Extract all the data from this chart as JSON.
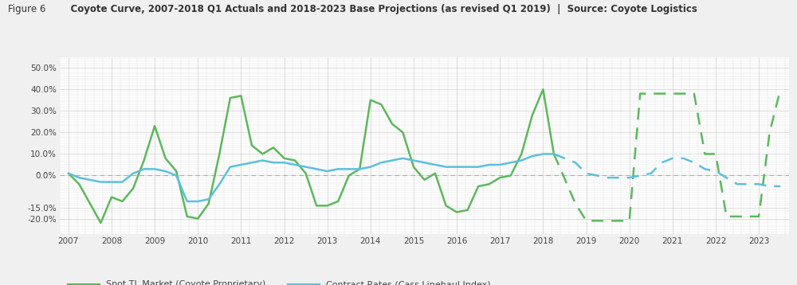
{
  "title_prefix": "Figure 6",
  "title_main": "    Coyote Curve, 2007-2018 Q1 Actuals and 2018-2023 Base Projections (as revised Q1 2019)  |  Source: Coyote Logistics",
  "background_color": "#f0f0f0",
  "plot_background": "#ffffff",
  "green_color": "#5cb85c",
  "cyan_color": "#5bc0de",
  "spot_solid_x": [
    2007.0,
    2007.25,
    2007.5,
    2007.75,
    2008.0,
    2008.25,
    2008.5,
    2008.75,
    2009.0,
    2009.25,
    2009.5,
    2009.75,
    2010.0,
    2010.25,
    2010.5,
    2010.75,
    2011.0,
    2011.25,
    2011.5,
    2011.75,
    2012.0,
    2012.25,
    2012.5,
    2012.75,
    2013.0,
    2013.25,
    2013.5,
    2013.75,
    2014.0,
    2014.25,
    2014.5,
    2014.75,
    2015.0,
    2015.25,
    2015.5,
    2015.75,
    2016.0,
    2016.25,
    2016.5,
    2016.75,
    2017.0,
    2017.25,
    2017.5,
    2017.75,
    2018.0,
    2018.25
  ],
  "spot_solid_y": [
    0.01,
    -0.04,
    -0.13,
    -0.22,
    -0.1,
    -0.12,
    -0.06,
    0.07,
    0.23,
    0.08,
    0.02,
    -0.19,
    -0.2,
    -0.13,
    0.1,
    0.36,
    0.37,
    0.14,
    0.1,
    0.13,
    0.08,
    0.07,
    0.01,
    -0.14,
    -0.14,
    -0.12,
    0.0,
    0.03,
    0.35,
    0.33,
    0.24,
    0.2,
    0.04,
    -0.02,
    0.01,
    -0.14,
    -0.17,
    -0.16,
    -0.05,
    -0.04,
    -0.01,
    0.0,
    0.1,
    0.28,
    0.4,
    0.1
  ],
  "spot_dashed_x": [
    2018.25,
    2018.75,
    2019.0,
    2019.5,
    2019.75,
    2020.0,
    2020.25,
    2021.25,
    2021.5,
    2021.75,
    2022.0,
    2022.25,
    2022.75,
    2023.0,
    2023.25,
    2023.5
  ],
  "spot_dashed_y": [
    0.1,
    -0.13,
    -0.21,
    -0.21,
    -0.21,
    -0.21,
    0.38,
    0.38,
    0.38,
    0.1,
    0.1,
    -0.19,
    -0.19,
    -0.19,
    0.2,
    0.4
  ],
  "contract_solid_x": [
    2007.0,
    2007.25,
    2007.5,
    2007.75,
    2008.0,
    2008.25,
    2008.5,
    2008.75,
    2009.0,
    2009.25,
    2009.5,
    2009.75,
    2010.0,
    2010.25,
    2010.5,
    2010.75,
    2011.0,
    2011.25,
    2011.5,
    2011.75,
    2012.0,
    2012.25,
    2012.5,
    2012.75,
    2013.0,
    2013.25,
    2013.5,
    2013.75,
    2014.0,
    2014.25,
    2014.5,
    2014.75,
    2015.0,
    2015.25,
    2015.5,
    2015.75,
    2016.0,
    2016.25,
    2016.5,
    2016.75,
    2017.0,
    2017.25,
    2017.5,
    2017.75,
    2018.0,
    2018.25
  ],
  "contract_solid_y": [
    0.01,
    -0.01,
    -0.02,
    -0.03,
    -0.03,
    -0.03,
    0.01,
    0.03,
    0.03,
    0.02,
    0.0,
    -0.12,
    -0.12,
    -0.11,
    -0.04,
    0.04,
    0.05,
    0.06,
    0.07,
    0.06,
    0.06,
    0.05,
    0.04,
    0.03,
    0.02,
    0.03,
    0.03,
    0.03,
    0.04,
    0.06,
    0.07,
    0.08,
    0.07,
    0.06,
    0.05,
    0.04,
    0.04,
    0.04,
    0.04,
    0.05,
    0.05,
    0.06,
    0.07,
    0.09,
    0.1,
    0.1
  ],
  "contract_dashed_x": [
    2018.25,
    2018.75,
    2019.0,
    2019.5,
    2019.75,
    2020.0,
    2020.5,
    2020.75,
    2021.0,
    2021.25,
    2021.5,
    2021.75,
    2022.0,
    2022.5,
    2022.75,
    2023.0,
    2023.25,
    2023.5
  ],
  "contract_dashed_y": [
    0.1,
    0.06,
    0.01,
    -0.01,
    -0.01,
    -0.01,
    0.01,
    0.06,
    0.08,
    0.08,
    0.06,
    0.03,
    0.02,
    -0.04,
    -0.04,
    -0.04,
    -0.05,
    -0.05
  ],
  "xtick_labels": [
    "2007",
    "2008",
    "2009",
    "2010",
    "2011",
    "2012",
    "2013",
    "2014",
    "2015",
    "2016",
    "2017",
    "2018",
    "2019",
    "2020",
    "2021",
    "2022",
    "2023"
  ],
  "xtick_values": [
    2007,
    2008,
    2009,
    2010,
    2011,
    2012,
    2013,
    2014,
    2015,
    2016,
    2017,
    2018,
    2019,
    2020,
    2021,
    2022,
    2023
  ],
  "ytick_labels": [
    "-20.0%",
    "-15.0%",
    "0.0%",
    "10.0%",
    "20.0%",
    "30.0%",
    "40.0%",
    "50.0%"
  ],
  "ytick_values": [
    -0.2,
    -0.15,
    0.0,
    0.1,
    0.2,
    0.3,
    0.4,
    0.5
  ],
  "legend_spot": "Spot TL Market (Coyote Proprietary)",
  "legend_contract": "Contract Rates (Cass Linehaul Index)"
}
